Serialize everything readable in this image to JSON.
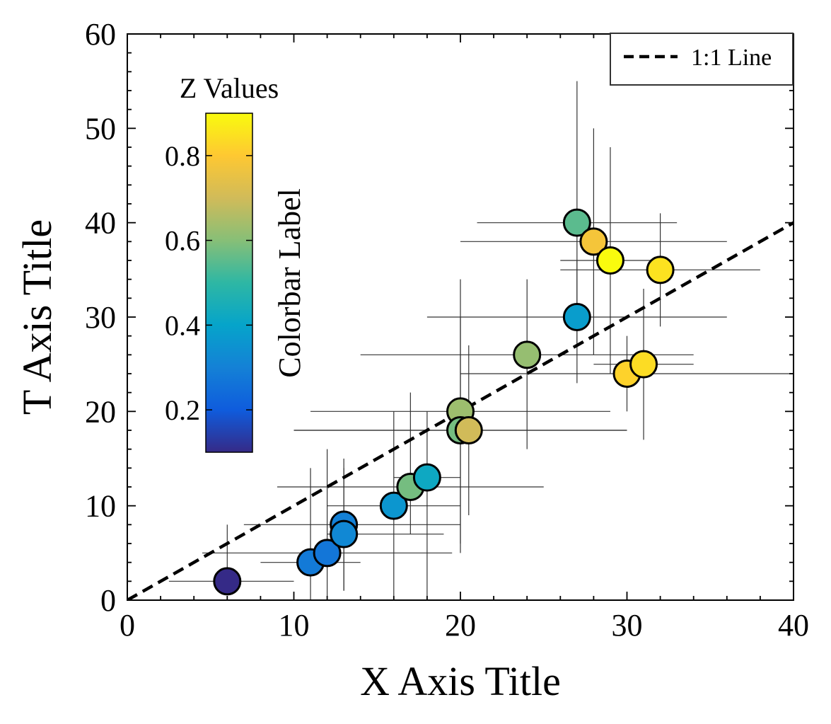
{
  "chart_data": {
    "type": "scatter",
    "xlabel": "X Axis Title",
    "ylabel": "T Axis Title",
    "xlim": [
      0,
      40
    ],
    "ylim": [
      0,
      60
    ],
    "x_ticks": [
      0,
      10,
      20,
      30,
      40
    ],
    "y_ticks": [
      0,
      10,
      20,
      30,
      40,
      50,
      60
    ],
    "grid": false,
    "legend": {
      "position": "top-right",
      "entries": [
        "1:1 Line"
      ]
    },
    "reference_line": {
      "name": "1:1 Line",
      "style": "dashed",
      "color": "#000000",
      "x": [
        0,
        40
      ],
      "y": [
        0,
        40
      ]
    },
    "colorbar": {
      "title": "Z Values",
      "label": "Colorbar Label",
      "range": [
        0.1,
        0.9
      ],
      "ticks": [
        0.2,
        0.4,
        0.6,
        0.8
      ],
      "tick_labels": [
        "0.2",
        "0.4",
        "0.6",
        "0.8"
      ],
      "colormap_stops": [
        "#352a87",
        "#0f5cdd",
        "#1481d6",
        "#06a4ca",
        "#2eb7a4",
        "#87bf77",
        "#d1bb59",
        "#fec832",
        "#f9fb0e"
      ]
    },
    "points": [
      {
        "x": 6,
        "y": 2,
        "z": 0.1,
        "xerr": [
          3.5,
          4
        ],
        "yerr": [
          0,
          6
        ]
      },
      {
        "x": 11,
        "y": 4,
        "z": 0.28,
        "xerr": [
          3,
          3
        ],
        "yerr": [
          4,
          10
        ]
      },
      {
        "x": 12,
        "y": 5,
        "z": 0.27,
        "xerr": [
          7.5,
          7.5
        ],
        "yerr": [
          5,
          11
        ]
      },
      {
        "x": 13,
        "y": 8,
        "z": 0.3,
        "xerr": [
          6,
          7
        ],
        "yerr": [
          7,
          7
        ]
      },
      {
        "x": 13,
        "y": 7,
        "z": 0.32,
        "xerr": [
          1,
          6
        ],
        "yerr": [
          6,
          7
        ]
      },
      {
        "x": 16,
        "y": 10,
        "z": 0.36,
        "xerr": [
          4,
          4
        ],
        "yerr": [
          10,
          10
        ]
      },
      {
        "x": 17,
        "y": 12,
        "z": 0.58,
        "xerr": [
          8,
          8
        ],
        "yerr": [
          5,
          10
        ]
      },
      {
        "x": 18,
        "y": 13,
        "z": 0.42,
        "xerr": [
          2,
          2
        ],
        "yerr": [
          13,
          7
        ]
      },
      {
        "x": 20,
        "y": 20,
        "z": 0.63,
        "xerr": [
          9,
          9
        ],
        "yerr": [
          15,
          14
        ]
      },
      {
        "x": 20,
        "y": 18,
        "z": 0.58,
        "xerr": [
          10,
          10
        ],
        "yerr": [
          12,
          12
        ]
      },
      {
        "x": 20.5,
        "y": 18,
        "z": 0.7,
        "xerr": [
          10.5,
          9.5
        ],
        "yerr": [
          9,
          9
        ]
      },
      {
        "x": 24,
        "y": 26,
        "z": 0.62,
        "xerr": [
          10,
          10
        ],
        "yerr": [
          10,
          8
        ]
      },
      {
        "x": 27,
        "y": 40,
        "z": 0.55,
        "xerr": [
          6,
          6
        ],
        "yerr": [
          13,
          15
        ]
      },
      {
        "x": 28,
        "y": 38,
        "z": 0.78,
        "xerr": [
          8,
          8
        ],
        "yerr": [
          12,
          12
        ]
      },
      {
        "x": 29,
        "y": 36,
        "z": 0.9,
        "xerr": [
          3,
          3
        ],
        "yerr": [
          12,
          12
        ]
      },
      {
        "x": 32,
        "y": 35,
        "z": 0.85,
        "xerr": [
          6,
          6
        ],
        "yerr": [
          6,
          6
        ]
      },
      {
        "x": 27,
        "y": 30,
        "z": 0.38,
        "xerr": [
          9,
          9
        ],
        "yerr": [
          7,
          6
        ]
      },
      {
        "x": 30,
        "y": 24,
        "z": 0.82,
        "xerr": [
          10,
          10
        ],
        "yerr": [
          4,
          4
        ]
      },
      {
        "x": 31,
        "y": 25,
        "z": 0.84,
        "xerr": [
          3,
          3
        ],
        "yerr": [
          8,
          8
        ]
      }
    ]
  }
}
